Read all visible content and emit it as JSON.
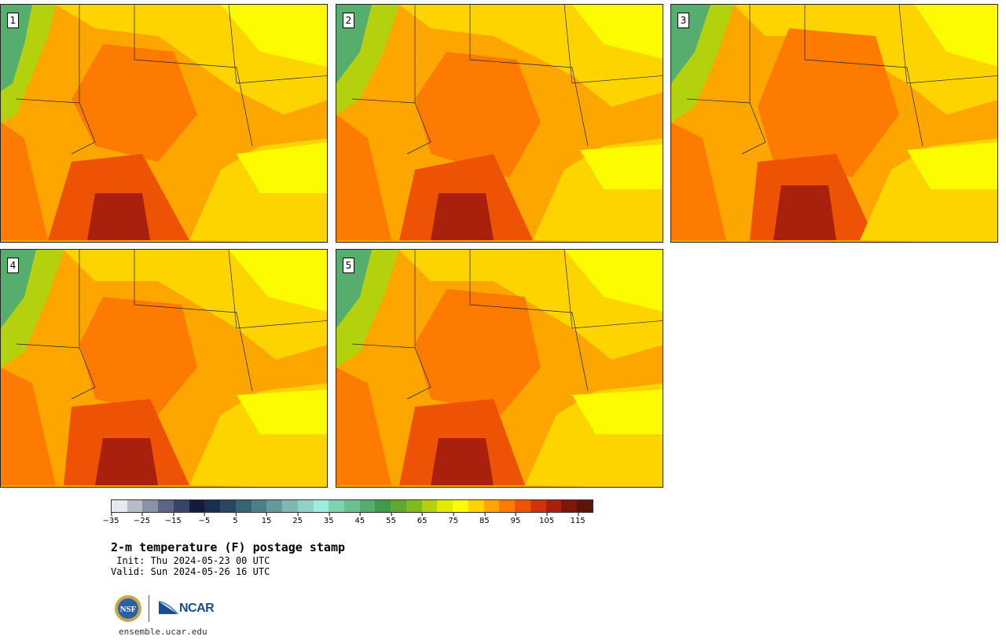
{
  "panels": [
    {
      "label": "1"
    },
    {
      "label": "2"
    },
    {
      "label": "3"
    },
    {
      "label": "4"
    },
    {
      "label": "5"
    }
  ],
  "colorbar": {
    "colors": [
      "#e6e9ee",
      "#b8bcc8",
      "#8d91a5",
      "#5e6584",
      "#3a4468",
      "#141b3b",
      "#1c2e50",
      "#27485f",
      "#376470",
      "#4b8086",
      "#649a9c",
      "#82b6b3",
      "#8ed3c5",
      "#a0ebe0",
      "#7fd1b2",
      "#6cc08f",
      "#56ae6e",
      "#3f9b4a",
      "#5ea832",
      "#7fbb1d",
      "#b3d10c",
      "#e1ea03",
      "#fdfb00",
      "#fed400",
      "#fea600",
      "#fd7b00",
      "#ee5205",
      "#d23109",
      "#a9200d",
      "#7d160d",
      "#5a1507"
    ],
    "ticks": [
      "−35",
      "−25",
      "−15",
      "−5",
      "5",
      "15",
      "25",
      "35",
      "45",
      "55",
      "65",
      "75",
      "85",
      "95",
      "105",
      "115"
    ]
  },
  "title": "2-m temperature (F) postage stamp",
  "init": " Init: Thu 2024-05-23 00 UTC",
  "valid": "Valid: Sun 2024-05-26 16 UTC",
  "logos": {
    "nsf": "NSF",
    "ncar": "NCAR"
  },
  "site": "ensemble.ucar.edu"
}
